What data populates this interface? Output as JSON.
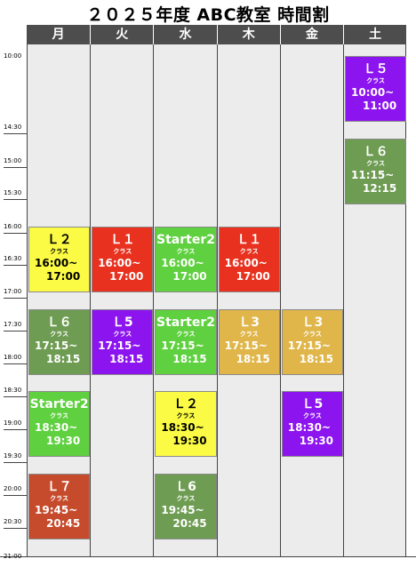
{
  "title": "２０２５年度 ABC教室 時間割",
  "days": [
    "月",
    "火",
    "水",
    "木",
    "金",
    "土"
  ],
  "time_labels": [
    "10:00",
    "14:30",
    "15:00",
    "15:30",
    "16:00",
    "16:30",
    "17:00",
    "17:30",
    "18:00",
    "18:30",
    "19:00",
    "19:30",
    "20:00",
    "20:30",
    "21:00"
  ],
  "class_label": "クラス",
  "colors": {
    "yellow": "#fbfb45",
    "red": "#e8311f",
    "green": "#5fd03f",
    "olive": "#6e9c52",
    "purple": "#8c14ee",
    "gold": "#e0b64a",
    "brick": "#c64b2c"
  },
  "classes": [
    {
      "day": "月",
      "name": "Ｌ２",
      "start": "16:00~",
      "end": "17:00",
      "color": "yellow"
    },
    {
      "day": "月",
      "name": "Ｌ６",
      "start": "17:15~",
      "end": "18:15",
      "color": "olive"
    },
    {
      "day": "月",
      "name": "Starter2",
      "start": "18:30~",
      "end": "19:30",
      "color": "green"
    },
    {
      "day": "月",
      "name": "Ｌ７",
      "start": "19:45~",
      "end": "20:45",
      "color": "brick"
    },
    {
      "day": "火",
      "name": "Ｌ１",
      "start": "16:00~",
      "end": "17:00",
      "color": "red"
    },
    {
      "day": "火",
      "name": "Ｌ5",
      "start": "17:15~",
      "end": "18:15",
      "color": "purple"
    },
    {
      "day": "水",
      "name": "Starter2",
      "start": "16:00~",
      "end": "17:00",
      "color": "green"
    },
    {
      "day": "水",
      "name": "Starter2",
      "start": "17:15~",
      "end": "18:15",
      "color": "green"
    },
    {
      "day": "水",
      "name": "Ｌ２",
      "start": "18:30~",
      "end": "19:30",
      "color": "yellow"
    },
    {
      "day": "水",
      "name": "Ｌ6",
      "start": "19:45~",
      "end": "20:45",
      "color": "olive"
    },
    {
      "day": "木",
      "name": "Ｌ１",
      "start": "16:00~",
      "end": "17:00",
      "color": "red"
    },
    {
      "day": "木",
      "name": "Ｌ3",
      "start": "17:15~",
      "end": "18:15",
      "color": "gold"
    },
    {
      "day": "金",
      "name": "Ｌ3",
      "start": "17:15~",
      "end": "18:15",
      "color": "gold"
    },
    {
      "day": "金",
      "name": "Ｌ5",
      "start": "18:30~",
      "end": "19:30",
      "color": "purple"
    },
    {
      "day": "土",
      "name": "Ｌ５",
      "start": "10:00~",
      "end": "11:00",
      "color": "purple"
    },
    {
      "day": "土",
      "name": "Ｌ６",
      "start": "11:15~",
      "end": "12:15",
      "color": "olive"
    }
  ]
}
